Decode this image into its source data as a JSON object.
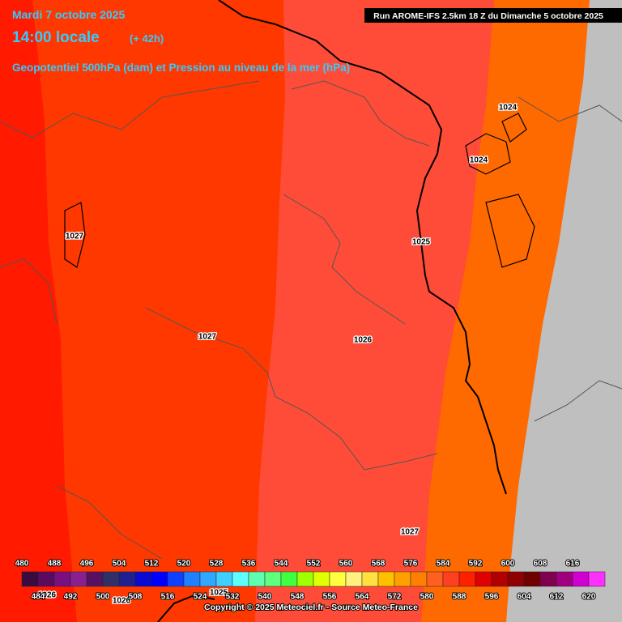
{
  "header": {
    "date": "Mardi 7 octobre 2025",
    "time": "14:00 locale",
    "lead": "(+ 42h)",
    "subtitle": "Geopotentiel 500hPa (dam) et Pression au niveau de la mer (hPa)",
    "run": "Run AROME-IFS 2.5km 18 Z du Dimanche 5 octobre 2025"
  },
  "pressure_labels": [
    "1024",
    "1024",
    "1027",
    "1025",
    "1027",
    "1026",
    "1027",
    "1026",
    "1026",
    "1025"
  ],
  "colorbar": {
    "top_labels": [
      480,
      488,
      496,
      504,
      512,
      520,
      528,
      536,
      544,
      552,
      560,
      568,
      576,
      584,
      592,
      600,
      608,
      616
    ],
    "bottom_labels": [
      484,
      492,
      500,
      508,
      516,
      524,
      532,
      540,
      548,
      556,
      564,
      572,
      580,
      588,
      596,
      604,
      612,
      620
    ],
    "colors": [
      "#3a0a40",
      "#5a0a60",
      "#7a1080",
      "#8a2090",
      "#5a1060",
      "#303068",
      "#202090",
      "#0a0ad0",
      "#0000ff",
      "#1040ff",
      "#2080ff",
      "#30a8ff",
      "#40d0ff",
      "#60ffff",
      "#60ffb0",
      "#60ff80",
      "#40ff40",
      "#a0ff00",
      "#e0ff00",
      "#ffff40",
      "#fff080",
      "#ffe040",
      "#ffc000",
      "#ffa000",
      "#ff8000",
      "#ff6020",
      "#ff4020",
      "#ff2000",
      "#e00000",
      "#b00000",
      "#900000",
      "#700000",
      "#800050",
      "#a00080",
      "#d000d0",
      "#ff30ff"
    ]
  },
  "copyright": "Copyright © 2025 Meteociel.fr - Source Meteo-France"
}
